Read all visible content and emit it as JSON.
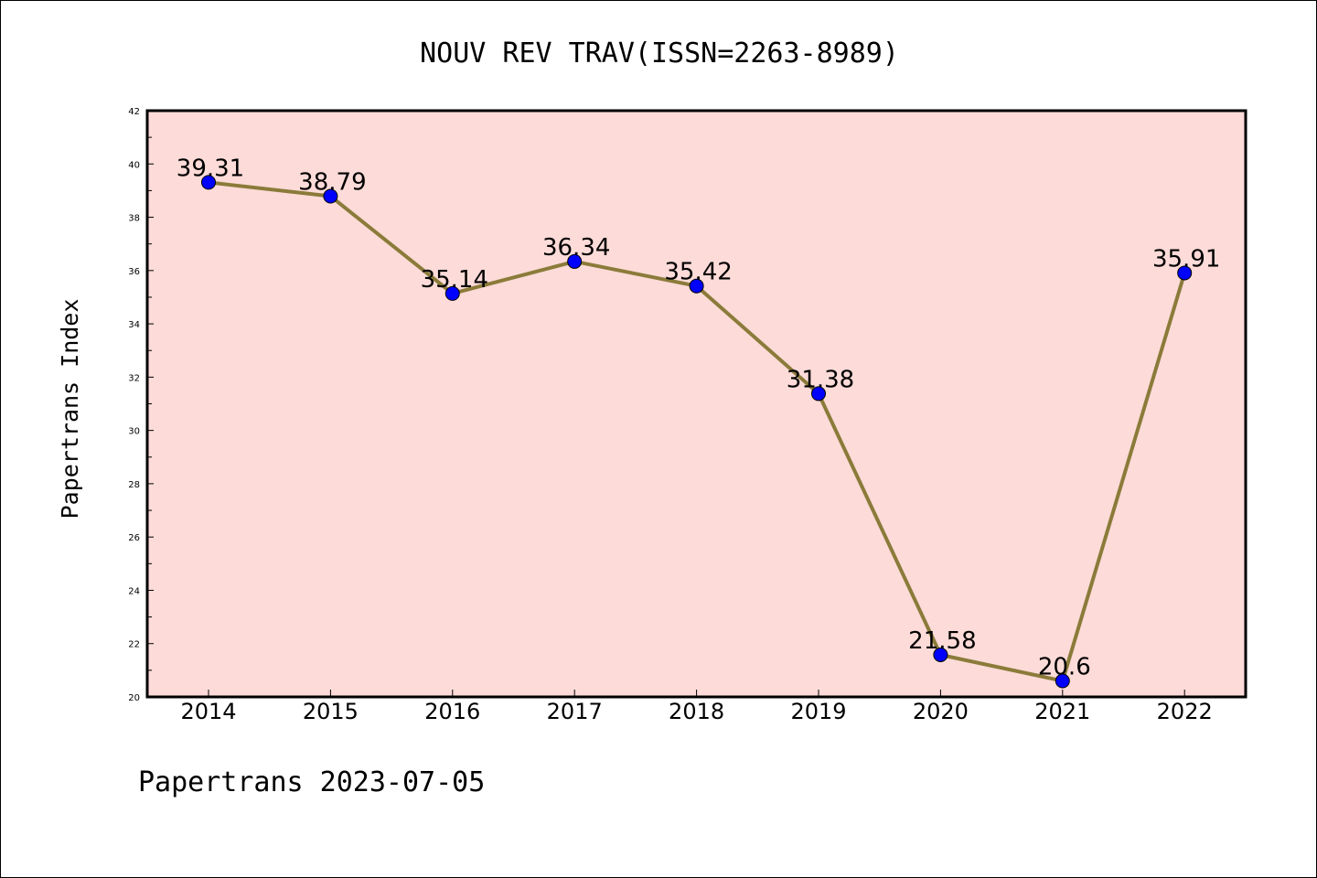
{
  "chart_data": {
    "type": "line",
    "title": "NOUV REV TRAV(ISSN=2263-8989)",
    "ylabel": "Papertrans Index",
    "xlabel": "",
    "categories": [
      "2014",
      "2015",
      "2016",
      "2017",
      "2018",
      "2019",
      "2020",
      "2021",
      "2022"
    ],
    "series": [
      {
        "values": [
          39.31,
          38.79,
          35.14,
          36.34,
          35.42,
          31.38,
          21.58,
          20.6,
          35.91
        ]
      }
    ],
    "data_labels": [
      "39.31",
      "38.79",
      "35.14",
      "36.34",
      "35.42",
      "31.38",
      "21.58",
      "20.6",
      "35.91"
    ],
    "ylim": [
      20,
      42
    ],
    "y_ticks": [
      "20",
      "22",
      "24",
      "26",
      "28",
      "30",
      "32",
      "34",
      "36",
      "38",
      "40",
      "42"
    ],
    "grid": false,
    "colors": {
      "plot_background": "#fddbd8",
      "line": "#8b7b3a",
      "marker": "#0000ff"
    }
  },
  "footer": "Papertrans 2023-07-05"
}
